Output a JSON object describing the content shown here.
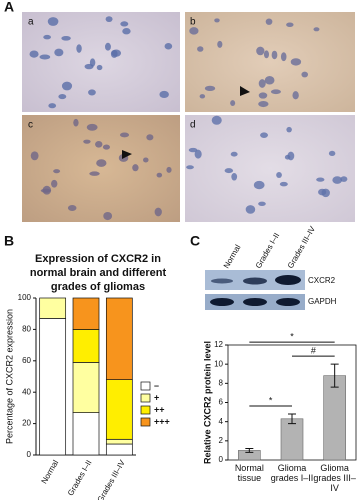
{
  "figure": {
    "panel_labels": [
      "A",
      "B",
      "C"
    ],
    "micrograph_labels": [
      "a",
      "b",
      "c",
      "d"
    ],
    "blot": {
      "lanes": [
        "Normal",
        "Grades I–II",
        "Grades III–IV"
      ],
      "bands": [
        "CXCR2",
        "GAPDH"
      ]
    }
  },
  "chart_data": [
    {
      "type": "stacked_bar",
      "title": "Expression of CXCR2 in normal brain and different grades of gliomas",
      "y_label": "Percentage of CXCR2 expression",
      "categories": [
        "Normal",
        "Grades I–II",
        "Grades III–IV"
      ],
      "series": [
        {
          "name": "–",
          "color": "#ffffff",
          "values": [
            87,
            27,
            7
          ]
        },
        {
          "name": "+",
          "color": "#ffffa0",
          "values": [
            13,
            32,
            3
          ]
        },
        {
          "name": "++",
          "color": "#ffee00",
          "values": [
            0,
            21,
            38
          ]
        },
        {
          "name": "+++",
          "color": "#f7941d",
          "values": [
            0,
            20,
            52
          ]
        }
      ],
      "ylim": [
        0,
        100
      ],
      "yticks": [
        0,
        20,
        40,
        60,
        80,
        100
      ]
    },
    {
      "type": "bar",
      "y_label": "Relative CXCR2 protein level",
      "categories": [
        "Normal tissue",
        "Glioma grades I–II",
        "Glioma grades III–IV"
      ],
      "values": [
        1.0,
        4.3,
        8.8
      ],
      "errors": [
        0.2,
        0.5,
        1.2
      ],
      "color": "#b3b3b3",
      "ylim": [
        0,
        12
      ],
      "yticks": [
        0,
        2,
        4,
        6,
        8,
        10,
        12
      ],
      "annotations": [
        "*",
        "#",
        "*"
      ]
    }
  ]
}
